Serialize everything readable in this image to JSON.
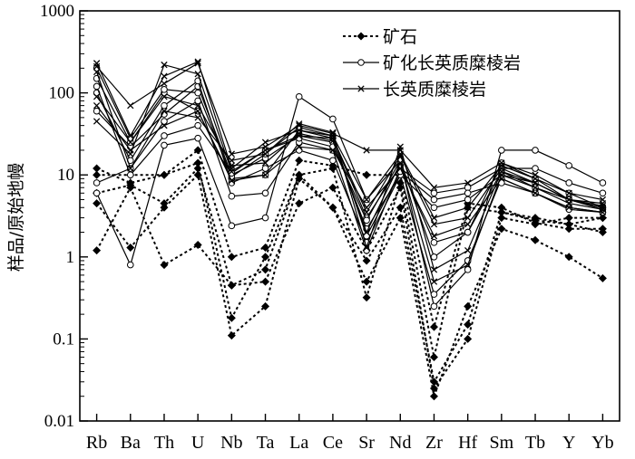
{
  "chart_data": {
    "type": "line",
    "scale": "log",
    "ylabel": "样品/原始地幔",
    "ylim": [
      0.01,
      1000
    ],
    "yticks": [
      "0.01",
      "0.1",
      "1",
      "10",
      "100",
      "1000"
    ],
    "yticks_values": [
      0.01,
      0.1,
      1,
      10,
      100,
      1000
    ],
    "categories": [
      "Rb",
      "Ba",
      "Th",
      "U",
      "Nb",
      "Ta",
      "La",
      "Ce",
      "Sr",
      "Nd",
      "Zr",
      "Hf",
      "Sm",
      "Tb",
      "Y",
      "Yb"
    ],
    "grid": false,
    "legend_position": "top-right",
    "legend": [
      {
        "label": "矿石",
        "style": "dashed",
        "marker": "diamond"
      },
      {
        "label": "矿化长英质糜棱岩",
        "style": "solid",
        "marker": "circle"
      },
      {
        "label": "长英质糜棱岩",
        "style": "solid",
        "marker": "x"
      }
    ],
    "series": [
      {
        "group": "ore",
        "values": [
          12,
          8,
          10,
          20,
          1,
          1.3,
          15,
          13,
          10,
          10,
          0.14,
          4.5,
          4,
          2.6,
          2.2,
          2.2
        ]
      },
      {
        "group": "ore",
        "values": [
          10,
          10,
          10,
          14,
          0.18,
          1,
          10,
          12,
          0.32,
          8,
          0.06,
          4,
          3.5,
          2.8,
          2.5,
          2
        ]
      },
      {
        "group": "ore",
        "values": [
          4.5,
          1.3,
          4,
          10,
          0.11,
          0.25,
          9,
          4,
          0.5,
          3,
          0.02,
          0.25,
          2.2,
          1.6,
          1,
          0.55
        ]
      },
      {
        "group": "ore",
        "values": [
          6,
          7.5,
          4.5,
          12,
          0.45,
          0.5,
          4.5,
          7,
          1.2,
          7,
          0.025,
          0.1,
          3,
          2.5,
          3,
          3
        ]
      },
      {
        "group": "ore",
        "values": [
          1.2,
          7,
          0.8,
          1.4,
          0.45,
          0.7,
          10,
          4,
          0.9,
          4,
          0.03,
          0.15,
          3.5,
          3,
          2.5,
          3
        ]
      },
      {
        "group": "mineralized",
        "values": [
          6,
          0.8,
          23,
          28,
          2.4,
          3,
          90,
          48,
          5,
          15,
          0.25,
          0.7,
          20,
          20,
          13,
          8
        ]
      },
      {
        "group": "mineralized",
        "values": [
          8,
          12,
          45,
          80,
          5.5,
          6,
          25,
          20,
          1.2,
          12,
          6,
          7,
          12,
          12,
          8,
          6
        ]
      },
      {
        "group": "mineralized",
        "values": [
          60,
          22,
          55,
          120,
          10,
          16,
          30,
          25,
          2.2,
          10,
          4,
          5,
          10,
          8,
          5,
          4
        ]
      },
      {
        "group": "mineralized",
        "values": [
          100,
          15,
          70,
          140,
          8,
          12,
          20,
          15,
          1.5,
          10,
          0.35,
          0.9,
          9,
          6,
          4,
          3.5
        ]
      },
      {
        "group": "mineralized",
        "values": [
          150,
          25,
          100,
          60,
          9,
          10,
          35,
          28,
          3,
          13,
          1.5,
          2,
          11,
          7,
          5,
          3.8
        ]
      },
      {
        "group": "mineralized",
        "values": [
          200,
          28,
          110,
          100,
          9.5,
          18,
          38,
          30,
          1.8,
          11,
          5,
          6,
          8,
          6,
          3.8,
          3.5
        ]
      },
      {
        "group": "mineralized",
        "values": [
          120,
          10,
          30,
          40,
          10.5,
          20,
          28,
          22,
          2.8,
          15,
          1,
          2,
          14,
          9,
          6,
          4
        ]
      },
      {
        "group": "mylonite",
        "values": [
          210,
          70,
          130,
          230,
          18,
          22,
          40,
          32,
          20,
          20,
          7,
          8,
          14,
          10,
          6,
          5
        ]
      },
      {
        "group": "mylonite",
        "values": [
          230,
          30,
          160,
          240,
          12,
          25,
          35,
          30,
          5,
          18,
          3,
          4,
          13,
          9,
          5,
          4.5
        ]
      },
      {
        "group": "mylonite",
        "values": [
          45,
          18,
          220,
          170,
          11,
          20,
          30,
          28,
          3.5,
          17,
          2.5,
          3,
          12,
          8,
          5,
          4
        ]
      },
      {
        "group": "mylonite",
        "values": [
          90,
          25,
          90,
          70,
          13,
          14,
          32,
          26,
          2,
          14,
          0.5,
          0.8,
          10,
          7,
          4.5,
          3.8
        ]
      },
      {
        "group": "mylonite",
        "values": [
          180,
          12,
          60,
          50,
          15,
          18,
          42,
          33,
          1.3,
          22,
          0.7,
          1.2,
          11,
          8,
          5,
          4.2
        ]
      },
      {
        "group": "mylonite",
        "values": [
          70,
          20,
          40,
          60,
          8.5,
          10,
          22,
          20,
          4,
          12,
          1.8,
          2.5,
          9,
          6,
          4,
          3.5
        ]
      }
    ]
  }
}
